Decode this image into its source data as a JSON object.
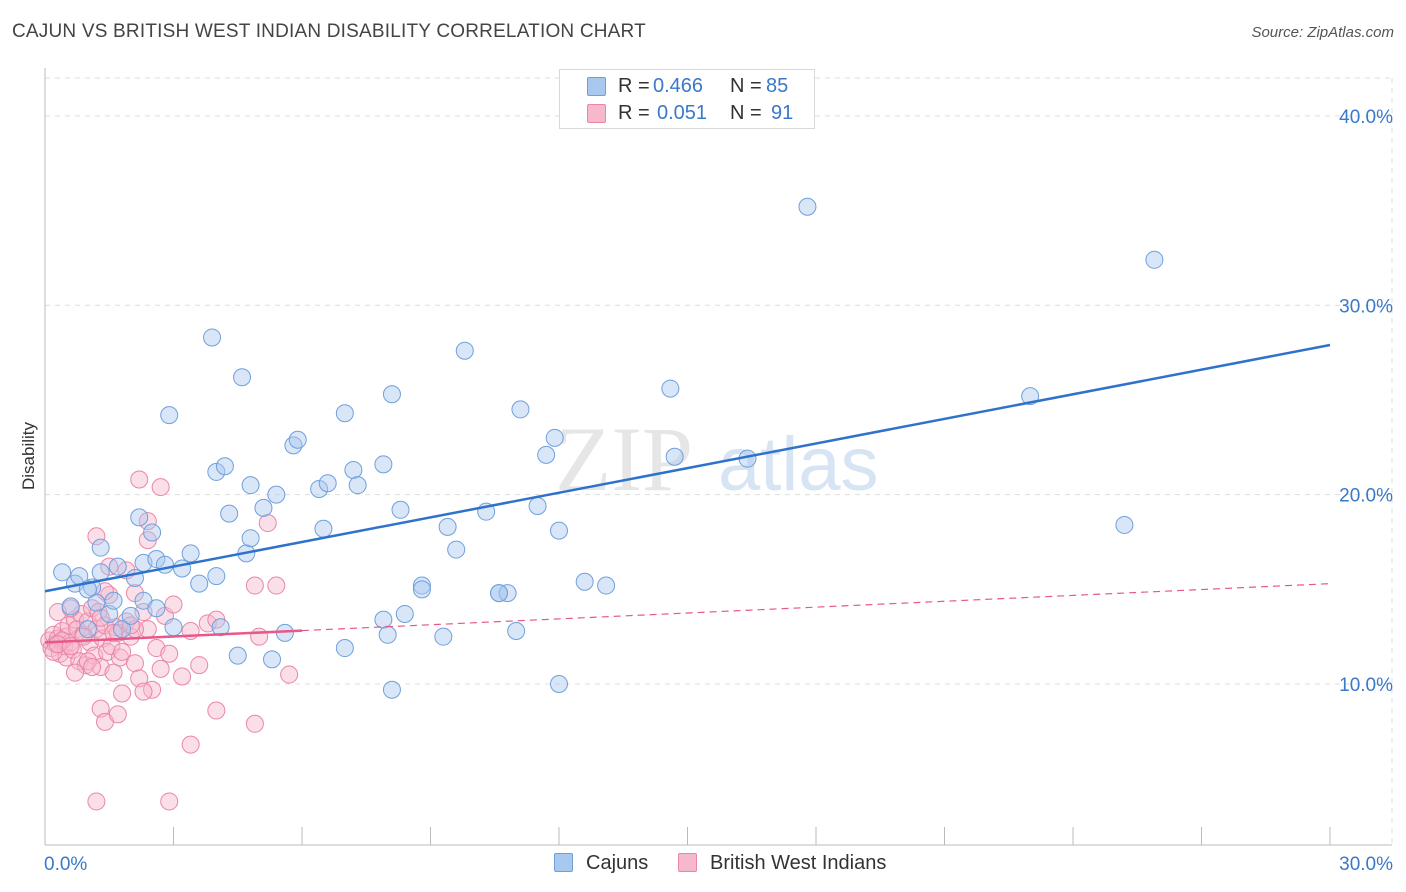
{
  "title": "CAJUN VS BRITISH WEST INDIAN DISABILITY CORRELATION CHART",
  "source": "Source: ZipAtlas.com",
  "watermark": {
    "zip": "ZIP",
    "atlas": "atlas"
  },
  "legend": {
    "rows": [
      {
        "r_label": "R =",
        "r_value": "0.466",
        "n_label": "N =",
        "n_value": "85"
      },
      {
        "r_label": "R =",
        "r_value": "0.051",
        "n_label": "N =",
        "n_value": "91"
      }
    ]
  },
  "bottom_legend": {
    "series1": "Cajuns",
    "series2": "British West Indians"
  },
  "colors": {
    "cajun_fill": "#a9c8f0",
    "cajun_stroke": "#6fa0dc",
    "cajun_line": "#2f72cc",
    "bwi_fill": "#f6b8cb",
    "bwi_stroke": "#ea86a6",
    "bwi_line": "#e8588a",
    "axis_label": "#3a78c9",
    "grid": "#dddddd"
  },
  "chart_data": {
    "type": "scatter",
    "title": "CAJUN VS BRITISH WEST INDIAN DISABILITY CORRELATION CHART",
    "xlabel": "",
    "ylabel": "Disability",
    "xlim": [
      0,
      30
    ],
    "ylim": [
      1.5,
      42
    ],
    "x_tick_labels": [
      "0.0%",
      "30.0%"
    ],
    "y_ticks": [
      10,
      20,
      30,
      40
    ],
    "y_tick_labels": [
      "10.0%",
      "20.0%",
      "30.0%",
      "40.0%"
    ],
    "series": [
      {
        "name": "Cajuns",
        "r": 0.466,
        "n": 85,
        "trend": {
          "x": [
            0,
            30
          ],
          "y": [
            14.9,
            27.9
          ]
        },
        "points": [
          [
            0.4,
            15.9
          ],
          [
            0.6,
            14.1
          ],
          [
            0.7,
            15.3
          ],
          [
            0.8,
            15.7
          ],
          [
            1.0,
            12.9
          ],
          [
            1.1,
            15.1
          ],
          [
            1.2,
            14.3
          ],
          [
            1.3,
            15.9
          ],
          [
            1.5,
            13.7
          ],
          [
            1.6,
            14.4
          ],
          [
            1.7,
            16.2
          ],
          [
            1.8,
            12.9
          ],
          [
            2.1,
            15.6
          ],
          [
            2.3,
            16.4
          ],
          [
            2.6,
            16.6
          ],
          [
            1.3,
            17.2
          ],
          [
            2.2,
            18.8
          ],
          [
            2.5,
            18.0
          ],
          [
            2.8,
            16.3
          ],
          [
            3.2,
            16.1
          ],
          [
            3.4,
            16.9
          ],
          [
            3.6,
            15.3
          ],
          [
            4.0,
            15.7
          ],
          [
            4.3,
            19.0
          ],
          [
            4.7,
            16.9
          ],
          [
            4.8,
            17.7
          ],
          [
            2.9,
            24.2
          ],
          [
            3.9,
            28.3
          ],
          [
            4.0,
            21.2
          ],
          [
            4.2,
            21.5
          ],
          [
            4.6,
            26.2
          ],
          [
            4.8,
            20.5
          ],
          [
            5.1,
            19.3
          ],
          [
            5.4,
            20.0
          ],
          [
            5.8,
            22.6
          ],
          [
            5.9,
            22.9
          ],
          [
            6.4,
            20.3
          ],
          [
            6.6,
            20.6
          ],
          [
            6.5,
            18.2
          ],
          [
            7.0,
            24.3
          ],
          [
            7.2,
            21.3
          ],
          [
            7.3,
            20.5
          ],
          [
            7.9,
            21.6
          ],
          [
            8.1,
            25.3
          ],
          [
            8.3,
            19.2
          ],
          [
            8.8,
            15.2
          ],
          [
            9.4,
            18.3
          ],
          [
            9.6,
            17.1
          ],
          [
            9.8,
            27.6
          ],
          [
            10.3,
            19.1
          ],
          [
            10.6,
            14.8
          ],
          [
            10.8,
            14.8
          ],
          [
            11.0,
            12.8
          ],
          [
            11.1,
            24.5
          ],
          [
            11.5,
            19.4
          ],
          [
            11.7,
            22.1
          ],
          [
            11.9,
            23.0
          ],
          [
            12.0,
            18.1
          ],
          [
            12.6,
            15.4
          ],
          [
            13.1,
            15.2
          ],
          [
            14.6,
            25.6
          ],
          [
            14.7,
            22.0
          ],
          [
            16.4,
            21.9
          ],
          [
            17.8,
            35.2
          ],
          [
            23.0,
            25.2
          ],
          [
            25.2,
            18.4
          ],
          [
            25.9,
            32.4
          ],
          [
            8.8,
            15.0
          ],
          [
            8.4,
            13.7
          ],
          [
            7.9,
            13.4
          ],
          [
            8.0,
            12.6
          ],
          [
            9.3,
            12.5
          ],
          [
            7.0,
            11.9
          ],
          [
            5.3,
            11.3
          ],
          [
            4.5,
            11.5
          ],
          [
            5.6,
            12.7
          ],
          [
            4.1,
            13.0
          ],
          [
            3.0,
            13.0
          ],
          [
            2.3,
            14.4
          ],
          [
            2.0,
            13.6
          ],
          [
            2.6,
            14.0
          ],
          [
            1.0,
            15.0
          ],
          [
            8.1,
            9.7
          ],
          [
            12.0,
            10.0
          ],
          [
            10.6,
            14.8
          ]
        ]
      },
      {
        "name": "British West Indians",
        "r": 0.051,
        "n": 91,
        "trend": {
          "x": [
            0,
            30
          ],
          "y": [
            12.2,
            15.3
          ]
        },
        "trend_solid_to_x": 6.0,
        "points": [
          [
            0.1,
            12.3
          ],
          [
            0.15,
            11.9
          ],
          [
            0.2,
            12.6
          ],
          [
            0.25,
            12.1
          ],
          [
            0.3,
            12.4
          ],
          [
            0.35,
            11.6
          ],
          [
            0.4,
            12.8
          ],
          [
            0.45,
            12.0
          ],
          [
            0.5,
            12.5
          ],
          [
            0.5,
            11.4
          ],
          [
            0.55,
            13.1
          ],
          [
            0.6,
            12.2
          ],
          [
            0.65,
            11.8
          ],
          [
            0.7,
            13.4
          ],
          [
            0.75,
            12.9
          ],
          [
            0.8,
            11.2
          ],
          [
            0.85,
            13.7
          ],
          [
            0.9,
            12.6
          ],
          [
            0.95,
            11.0
          ],
          [
            1.0,
            13.3
          ],
          [
            1.05,
            12.2
          ],
          [
            1.1,
            14.0
          ],
          [
            1.15,
            11.5
          ],
          [
            1.2,
            12.9
          ],
          [
            1.25,
            13.8
          ],
          [
            1.3,
            10.9
          ],
          [
            1.35,
            12.4
          ],
          [
            1.4,
            13.1
          ],
          [
            1.45,
            11.7
          ],
          [
            1.5,
            14.7
          ],
          [
            1.55,
            12.0
          ],
          [
            1.6,
            10.6
          ],
          [
            1.65,
            13.0
          ],
          [
            1.7,
            12.7
          ],
          [
            1.75,
            11.4
          ],
          [
            1.8,
            9.5
          ],
          [
            1.9,
            13.3
          ],
          [
            2.0,
            12.5
          ],
          [
            2.1,
            11.1
          ],
          [
            2.2,
            10.3
          ],
          [
            2.3,
            13.8
          ],
          [
            2.4,
            12.9
          ],
          [
            2.5,
            9.7
          ],
          [
            2.6,
            11.9
          ],
          [
            2.7,
            10.8
          ],
          [
            2.8,
            13.6
          ],
          [
            2.9,
            11.6
          ],
          [
            3.0,
            14.2
          ],
          [
            3.2,
            10.4
          ],
          [
            3.4,
            12.8
          ],
          [
            3.6,
            11.0
          ],
          [
            3.8,
            13.2
          ],
          [
            4.0,
            8.6
          ],
          [
            1.3,
            8.7
          ],
          [
            1.4,
            8.0
          ],
          [
            1.7,
            8.4
          ],
          [
            2.3,
            9.6
          ],
          [
            3.4,
            6.8
          ],
          [
            1.2,
            3.8
          ],
          [
            2.9,
            3.8
          ],
          [
            4.9,
            7.9
          ],
          [
            2.2,
            20.8
          ],
          [
            2.7,
            20.4
          ],
          [
            2.4,
            17.6
          ],
          [
            5.2,
            18.5
          ],
          [
            1.2,
            17.8
          ],
          [
            2.4,
            18.6
          ],
          [
            1.5,
            16.2
          ],
          [
            1.9,
            16.0
          ],
          [
            4.9,
            15.2
          ],
          [
            5.4,
            15.2
          ],
          [
            2.1,
            14.8
          ],
          [
            1.4,
            14.9
          ],
          [
            4.0,
            13.4
          ],
          [
            5.0,
            12.5
          ],
          [
            5.7,
            10.5
          ],
          [
            0.7,
            10.6
          ],
          [
            0.3,
            13.8
          ],
          [
            0.6,
            14.0
          ],
          [
            1.8,
            11.7
          ],
          [
            2.1,
            12.9
          ],
          [
            1.0,
            11.2
          ],
          [
            0.9,
            12.5
          ],
          [
            1.1,
            10.9
          ],
          [
            0.4,
            12.3
          ],
          [
            0.2,
            11.7
          ],
          [
            0.3,
            12.1
          ],
          [
            0.6,
            12.0
          ],
          [
            1.6,
            12.7
          ],
          [
            2.0,
            13.1
          ],
          [
            1.3,
            13.5
          ]
        ]
      }
    ]
  }
}
